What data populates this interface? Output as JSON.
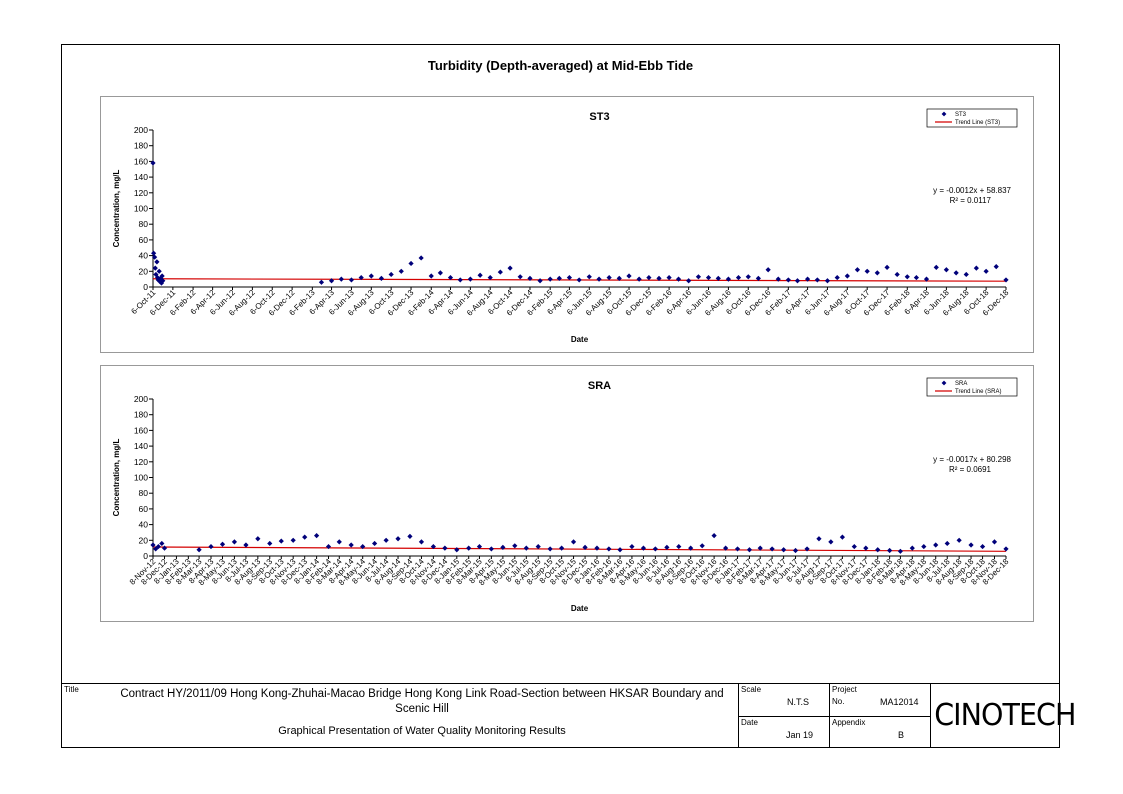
{
  "page_title": "Turbidity (Depth-averaged) at Mid-Ebb Tide",
  "chart_data": [
    {
      "type": "scatter",
      "title": "ST3",
      "xlabel": "Date",
      "ylabel": "Concentration, mg/L",
      "ylim": [
        0,
        200
      ],
      "yticks": [
        0,
        20,
        40,
        60,
        80,
        100,
        120,
        140,
        160,
        180,
        200
      ],
      "xlim": [
        "2011-10-06",
        "2018-12-06"
      ],
      "xtick_labels": [
        "6-Oct-11",
        "6-Dec-11",
        "6-Feb-12",
        "6-Apr-12",
        "6-Jun-12",
        "6-Aug-12",
        "6-Oct-12",
        "6-Dec-12",
        "6-Feb-13",
        "6-Apr-13",
        "6-Jun-13",
        "6-Aug-13",
        "6-Oct-13",
        "6-Dec-13",
        "6-Feb-14",
        "6-Apr-14",
        "6-Jun-14",
        "6-Aug-14",
        "6-Oct-14",
        "6-Dec-14",
        "6-Feb-15",
        "6-Apr-15",
        "6-Jun-15",
        "6-Aug-15",
        "6-Oct-15",
        "6-Dec-15",
        "6-Feb-16",
        "6-Apr-16",
        "6-Jun-16",
        "6-Aug-16",
        "6-Oct-16",
        "6-Dec-16",
        "6-Feb-17",
        "6-Apr-17",
        "6-Jun-17",
        "6-Aug-17",
        "6-Oct-17",
        "6-Dec-17",
        "6-Feb-18",
        "6-Apr-18",
        "6-Jun-18",
        "6-Aug-18",
        "6-Oct-18",
        "6-Dec-18"
      ],
      "legend": {
        "placement": "top-right",
        "entries": [
          "ST3",
          "Trend Line (ST3)"
        ]
      },
      "trend_equation": "y = -0.0012x + 58.837",
      "r_squared": "R² = 0.0117",
      "trend": {
        "x": [
          "2011-10-06",
          "2018-12-06"
        ],
        "y": [
          10.5,
          7.4
        ]
      },
      "series": [
        {
          "name": "ST3",
          "x": [
            "2011-10-06",
            "2011-10-08",
            "2011-10-11",
            "2011-10-13",
            "2011-10-15",
            "2011-10-18",
            "2011-10-20",
            "2011-10-22",
            "2011-10-25",
            "2011-10-27",
            "2011-10-29",
            "2011-11-01",
            "2011-11-03",
            "2011-11-05",
            "2013-03-06",
            "2013-04-06",
            "2013-05-06",
            "2013-06-06",
            "2013-07-06",
            "2013-08-06",
            "2013-09-06",
            "2013-10-06",
            "2013-11-06",
            "2013-12-06",
            "2014-01-06",
            "2014-02-06",
            "2014-03-06",
            "2014-04-06",
            "2014-05-06",
            "2014-06-06",
            "2014-07-06",
            "2014-08-06",
            "2014-09-06",
            "2014-10-06",
            "2014-11-06",
            "2014-12-06",
            "2015-01-06",
            "2015-02-06",
            "2015-03-06",
            "2015-04-06",
            "2015-05-06",
            "2015-06-06",
            "2015-07-06",
            "2015-08-06",
            "2015-09-06",
            "2015-10-06",
            "2015-11-06",
            "2015-12-06",
            "2016-01-06",
            "2016-02-06",
            "2016-03-06",
            "2016-04-06",
            "2016-05-06",
            "2016-06-06",
            "2016-07-06",
            "2016-08-06",
            "2016-09-06",
            "2016-10-06",
            "2016-11-06",
            "2016-12-06",
            "2017-01-06",
            "2017-02-06",
            "2017-03-06",
            "2017-04-06",
            "2017-05-06",
            "2017-06-06",
            "2017-07-06",
            "2017-08-06",
            "2017-09-06",
            "2017-10-06",
            "2017-11-06",
            "2017-12-06",
            "2018-01-06",
            "2018-02-06",
            "2018-03-06",
            "2018-04-06",
            "2018-05-06",
            "2018-06-06",
            "2018-07-06",
            "2018-08-06",
            "2018-09-06",
            "2018-10-06",
            "2018-11-06",
            "2018-12-06"
          ],
          "y": [
            158,
            43,
            38,
            24,
            16,
            32,
            12,
            9,
            20,
            7,
            11,
            5,
            14,
            8,
            6,
            8,
            10,
            9,
            12,
            14,
            11,
            16,
            20,
            30,
            37,
            14,
            18,
            12,
            9,
            10,
            15,
            12,
            19,
            24,
            13,
            11,
            8,
            10,
            11,
            12,
            9,
            13,
            10,
            12,
            11,
            14,
            10,
            12,
            11,
            12,
            10,
            8,
            13,
            12,
            11,
            10,
            12,
            13,
            11,
            22,
            10,
            9,
            8,
            10,
            9,
            8,
            12,
            14,
            22,
            20,
            18,
            25,
            16,
            13,
            12,
            10,
            25,
            22,
            18,
            16,
            24,
            20,
            26,
            9
          ]
        }
      ]
    },
    {
      "type": "scatter",
      "title": "SRA",
      "xlabel": "Date",
      "ylabel": "Concentration, mg/L",
      "ylim": [
        0,
        200
      ],
      "yticks": [
        0,
        20,
        40,
        60,
        80,
        100,
        120,
        140,
        160,
        180,
        200
      ],
      "xlim": [
        "2012-11-08",
        "2018-12-08"
      ],
      "xtick_labels": [
        "8-Nov-12",
        "8-Dec-12",
        "8-Jan-13",
        "8-Feb-13",
        "8-Mar-13",
        "8-Apr-13",
        "8-May-13",
        "8-Jun-13",
        "8-Jul-13",
        "8-Aug-13",
        "8-Sep-13",
        "8-Oct-13",
        "8-Nov-13",
        "8-Dec-13",
        "8-Jan-14",
        "8-Feb-14",
        "8-Mar-14",
        "8-Apr-14",
        "8-May-14",
        "8-Jun-14",
        "8-Jul-14",
        "8-Aug-14",
        "8-Sep-14",
        "8-Oct-14",
        "8-Nov-14",
        "8-Dec-14",
        "8-Jan-15",
        "8-Feb-15",
        "8-Mar-15",
        "8-Apr-15",
        "8-May-15",
        "8-Jun-15",
        "8-Jul-15",
        "8-Aug-15",
        "8-Sep-15",
        "8-Oct-15",
        "8-Nov-15",
        "8-Dec-15",
        "8-Jan-16",
        "8-Feb-16",
        "8-Mar-16",
        "8-Apr-16",
        "8-May-16",
        "8-Jun-16",
        "8-Jul-16",
        "8-Aug-16",
        "8-Sep-16",
        "8-Oct-16",
        "8-Nov-16",
        "8-Dec-16",
        "8-Jan-17",
        "8-Feb-17",
        "8-Mar-17",
        "8-Apr-17",
        "8-May-17",
        "8-Jun-17",
        "8-Jul-17",
        "8-Aug-17",
        "8-Sep-17",
        "8-Oct-17",
        "8-Nov-17",
        "8-Dec-17",
        "8-Jan-18",
        "8-Feb-18",
        "8-Mar-18",
        "8-Apr-18",
        "8-May-18",
        "8-Jun-18",
        "8-Jul-18",
        "8-Aug-18",
        "8-Sep-18",
        "8-Oct-18",
        "8-Nov-18",
        "8-Dec-18"
      ],
      "legend": {
        "placement": "top-right",
        "entries": [
          "SRA",
          "Trend Line (SRA)"
        ]
      },
      "trend_equation": "y = -0.0017x + 80.298",
      "r_squared": "R² = 0.0691",
      "trend": {
        "x": [
          "2012-11-08",
          "2018-12-08"
        ],
        "y": [
          11.5,
          6.0
        ]
      },
      "series": [
        {
          "name": "SRA",
          "x": [
            "2012-11-08",
            "2012-11-15",
            "2012-11-22",
            "2012-12-01",
            "2012-12-08",
            "2013-03-08",
            "2013-04-08",
            "2013-05-08",
            "2013-06-08",
            "2013-07-08",
            "2013-08-08",
            "2013-09-08",
            "2013-10-08",
            "2013-11-08",
            "2013-12-08",
            "2014-01-08",
            "2014-02-08",
            "2014-03-08",
            "2014-04-08",
            "2014-05-08",
            "2014-06-08",
            "2014-07-08",
            "2014-08-08",
            "2014-09-08",
            "2014-10-08",
            "2014-11-08",
            "2014-12-08",
            "2015-01-08",
            "2015-02-08",
            "2015-03-08",
            "2015-04-08",
            "2015-05-08",
            "2015-06-08",
            "2015-07-08",
            "2015-08-08",
            "2015-09-08",
            "2015-10-08",
            "2015-11-08",
            "2015-12-08",
            "2016-01-08",
            "2016-02-08",
            "2016-03-08",
            "2016-04-08",
            "2016-05-08",
            "2016-06-08",
            "2016-07-08",
            "2016-08-08",
            "2016-09-08",
            "2016-10-08",
            "2016-11-08",
            "2016-12-08",
            "2017-01-08",
            "2017-02-08",
            "2017-03-08",
            "2017-04-08",
            "2017-05-08",
            "2017-06-08",
            "2017-07-08",
            "2017-08-08",
            "2017-09-08",
            "2017-10-08",
            "2017-11-08",
            "2017-12-08",
            "2018-01-08",
            "2018-02-08",
            "2018-03-08",
            "2018-04-08",
            "2018-05-08",
            "2018-06-08",
            "2018-07-08",
            "2018-08-08",
            "2018-09-08",
            "2018-10-08",
            "2018-11-08",
            "2018-12-08"
          ],
          "y": [
            14,
            9,
            12,
            16,
            10,
            8,
            12,
            15,
            18,
            14,
            22,
            16,
            19,
            20,
            24,
            26,
            12,
            18,
            14,
            12,
            16,
            20,
            22,
            25,
            18,
            12,
            10,
            8,
            10,
            12,
            9,
            11,
            13,
            10,
            12,
            9,
            10,
            18,
            11,
            10,
            9,
            8,
            12,
            10,
            9,
            11,
            12,
            10,
            13,
            26,
            10,
            9,
            8,
            10,
            9,
            8,
            7,
            9,
            22,
            18,
            24,
            12,
            10,
            8,
            7,
            6,
            10,
            12,
            14,
            16,
            20,
            14,
            12,
            18,
            9
          ]
        }
      ]
    }
  ],
  "titleblock": {
    "title_label": "Title",
    "contract": "Contract HY/2011/09 Hong Kong-Zhuhai-Macao Bridge Hong Kong Link Road-Section between HKSAR Boundary and Scenic Hill",
    "subtitle": "Graphical Presentation of Water Quality Monitoring Results",
    "scale_label": "Scale",
    "scale_value": "N.T.S",
    "date_label": "Date",
    "date_value": "Jan 19",
    "project_label": "Project",
    "project_no_label": "No.",
    "project_no_value": "MA12014",
    "appendix_label": "Appendix",
    "appendix_value": "B",
    "logo_text": "CINOTECH"
  },
  "colors": {
    "marker": "#00007a",
    "trend": "#d40000"
  }
}
